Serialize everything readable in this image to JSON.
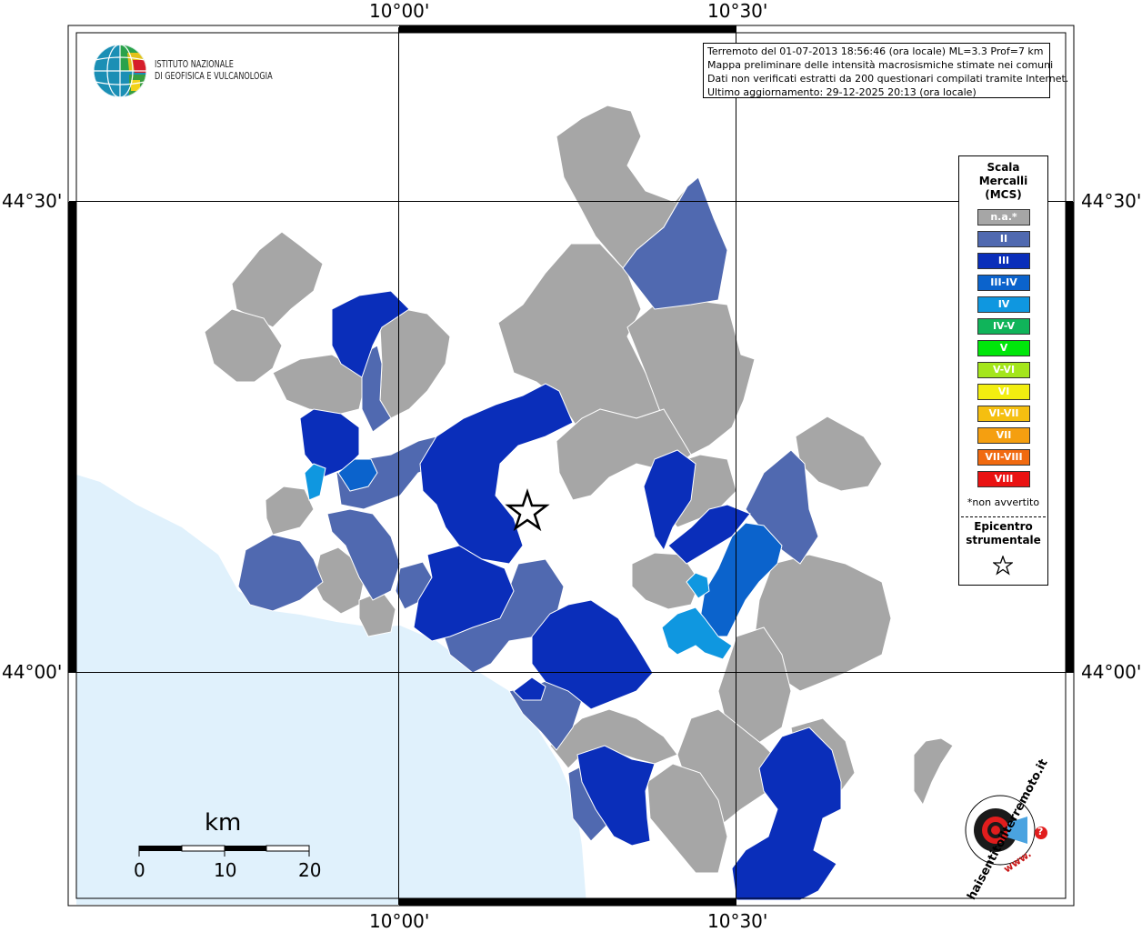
{
  "map": {
    "ticks_top": [
      "10°00'",
      "10°30'"
    ],
    "ticks_bottom": [
      "10°00'",
      "10°30'"
    ],
    "ticks_left": [
      "44°30'",
      "44°00'"
    ],
    "ticks_right": [
      "44°30'",
      "44°00'"
    ],
    "colors": {
      "sea": "#e0f1fc",
      "na": "#a6a6a6",
      "grid": "#000000"
    }
  },
  "logo": {
    "line1": "ISTITUTO NAZIONALE",
    "line2": "DI GEOFISICA E VULCANOLOGIA"
  },
  "info": {
    "line1": "Terremoto del 01-07-2013 18:56:46 (ora locale) ML=3.3 Prof=7 km",
    "line2": "Mappa preliminare delle intensità macrosismiche stimate nei comuni",
    "line3": "Dati non verificati estratti da 200 questionari compilati tramite Internet.",
    "line4": "Ultimo aggiornamento: 29-12-2025 20:13 (ora locale)"
  },
  "legend": {
    "title1": "Scala",
    "title2": "Mercalli",
    "title3": "(MCS)",
    "items": [
      {
        "label": "n.a.*",
        "color": "#a6a6a6"
      },
      {
        "label": "II",
        "color": "#5069b0"
      },
      {
        "label": "III",
        "color": "#0a2eba"
      },
      {
        "label": "III-IV",
        "color": "#0b63cc"
      },
      {
        "label": "IV",
        "color": "#0f97e0"
      },
      {
        "label": "IV-V",
        "color": "#10b45a"
      },
      {
        "label": "V",
        "color": "#00e60a"
      },
      {
        "label": "V-VI",
        "color": "#a4e61b"
      },
      {
        "label": "VI",
        "color": "#f2ee10"
      },
      {
        "label": "VI-VII",
        "color": "#f5bf10"
      },
      {
        "label": "VII",
        "color": "#f59f10"
      },
      {
        "label": "VII-VIII",
        "color": "#f16a10"
      },
      {
        "label": "VIII",
        "color": "#ea1212"
      }
    ],
    "note": "*non avvertito",
    "epicenter1": "Epicentro",
    "epicenter2": "strumentale"
  },
  "scalebar": {
    "unit": "km",
    "labels": [
      "0",
      "10",
      "20"
    ]
  },
  "badge": {
    "text_outer": "www.",
    "text_main": "haisentitoilterremoto.it",
    "text_end": "?"
  }
}
